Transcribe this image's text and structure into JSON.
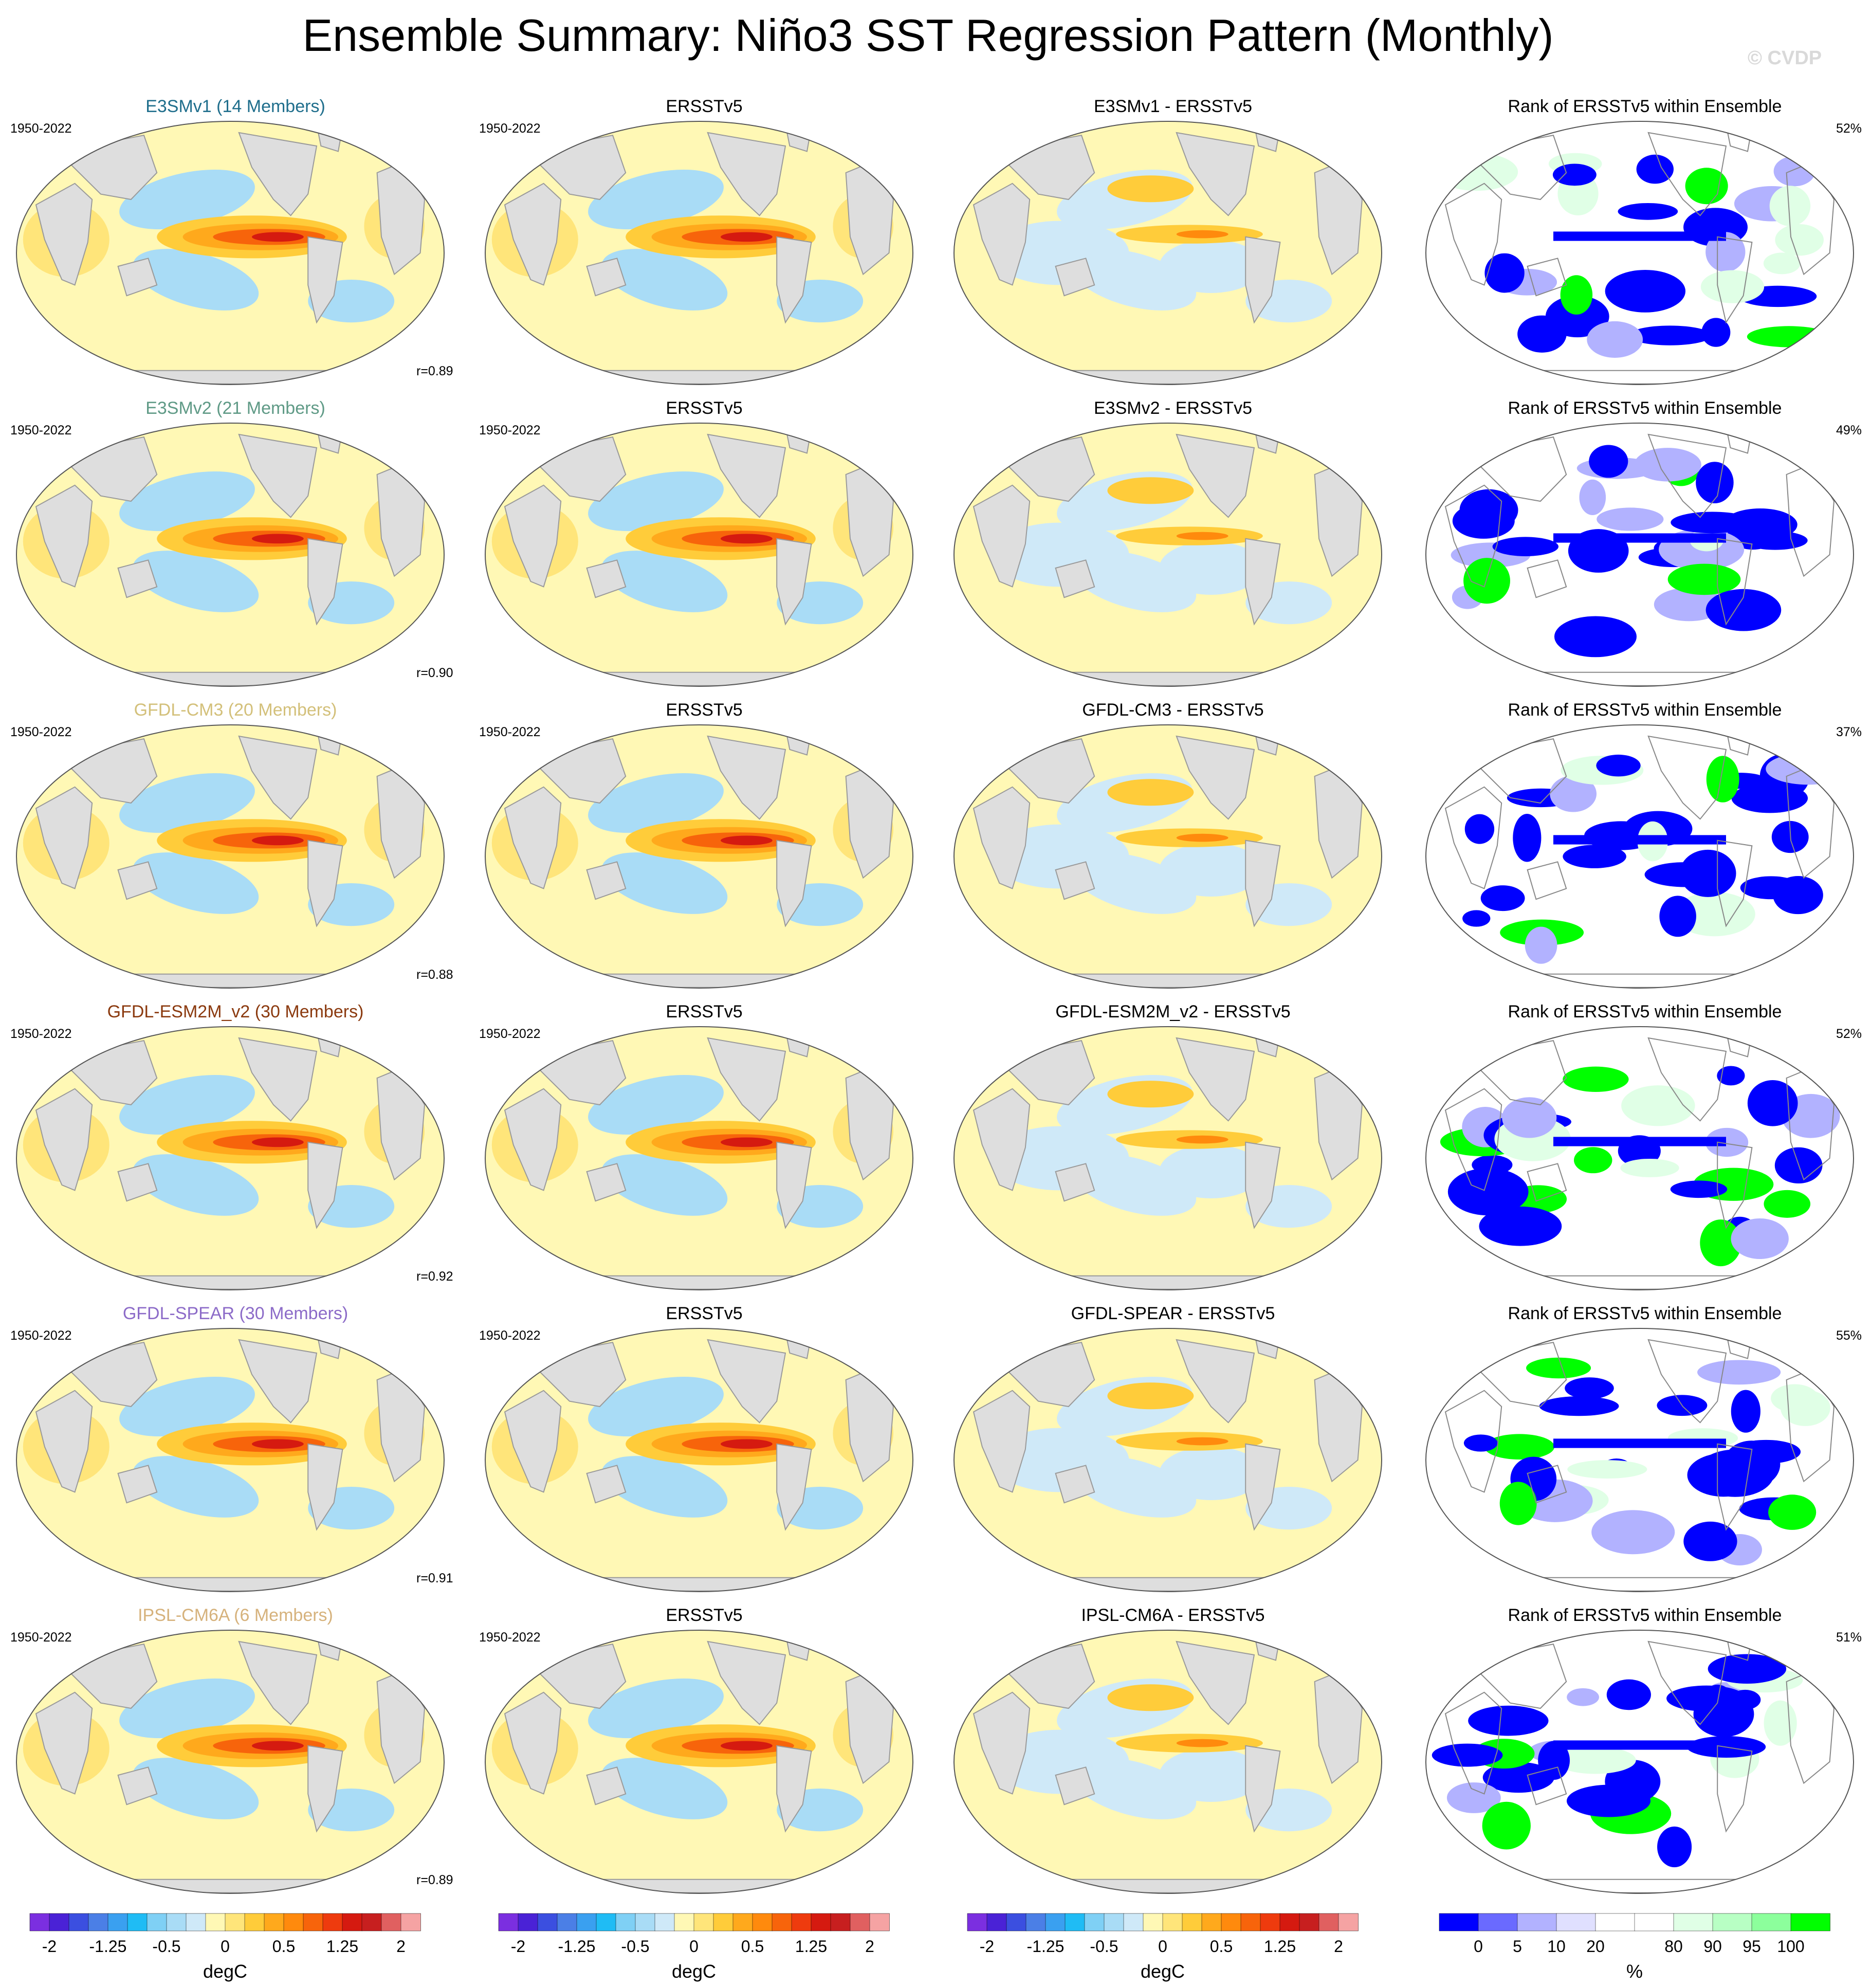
{
  "title": "Ensemble Summary: Niño3 SST Regression Pattern (Monthly)",
  "watermark": "© CVDP",
  "chart_data": {
    "type": "heatmap",
    "grid": {
      "columns": 4,
      "rows": 6
    },
    "column_titles": [
      "",
      "ERSSTv5",
      "- ERSSTv5",
      "Rank of ERSSTv5 within Ensemble"
    ],
    "rows": [
      {
        "model": "E3SMv1 (14 Members)",
        "model_color": "#1f6e8c",
        "period": "1950-2022",
        "obs_period": "1950-2022",
        "diff_title": "E3SMv1 - ERSSTv5",
        "rank_title": "Rank of ERSSTv5 within Ensemble",
        "r": "r=0.89",
        "rank_pct": "52%",
        "obs_title": "ERSSTv5"
      },
      {
        "model": "E3SMv2 (21 Members)",
        "model_color": "#5f9a86",
        "period": "1950-2022",
        "obs_period": "1950-2022",
        "diff_title": "E3SMv2 - ERSSTv5",
        "rank_title": "Rank of ERSSTv5 within Ensemble",
        "r": "r=0.90",
        "rank_pct": "49%",
        "obs_title": "ERSSTv5"
      },
      {
        "model": "GFDL-CM3 (20 Members)",
        "model_color": "#d3c07a",
        "period": "1950-2022",
        "obs_period": "1950-2022",
        "diff_title": "GFDL-CM3 - ERSSTv5",
        "rank_title": "Rank of ERSSTv5 within Ensemble",
        "r": "r=0.88",
        "rank_pct": "37%",
        "obs_title": "ERSSTv5"
      },
      {
        "model": "GFDL-ESM2M_v2 (30 Members)",
        "model_color": "#8b3a0f",
        "period": "1950-2022",
        "obs_period": "1950-2022",
        "diff_title": "GFDL-ESM2M_v2 - ERSSTv5",
        "rank_title": "Rank of ERSSTv5 within Ensemble",
        "r": "r=0.92",
        "rank_pct": "52%",
        "obs_title": "ERSSTv5"
      },
      {
        "model": "GFDL-SPEAR (30 Members)",
        "model_color": "#8c6bc8",
        "period": "1950-2022",
        "obs_period": "1950-2022",
        "diff_title": "GFDL-SPEAR - ERSSTv5",
        "rank_title": "Rank of ERSSTv5 within Ensemble",
        "r": "r=0.91",
        "rank_pct": "55%",
        "obs_title": "ERSSTv5"
      },
      {
        "model": "IPSL-CM6A (6 Members)",
        "model_color": "#d6b27c",
        "period": "1950-2022",
        "obs_period": "1950-2022",
        "diff_title": "IPSL-CM6A - ERSSTv5",
        "rank_title": "Rank of ERSSTv5 within Ensemble",
        "r": "r=0.89",
        "rank_pct": "51%",
        "obs_title": "ERSSTv5"
      }
    ],
    "sst_colorbar": {
      "unit": "degC",
      "tick_labels": [
        "-2",
        "-1.25",
        "-0.5",
        "0",
        "0.5",
        "1.25",
        "2"
      ],
      "colors": [
        "#7b2fe0",
        "#4a22d6",
        "#3b4fe0",
        "#4b7fe6",
        "#3aa0f0",
        "#1fbcf5",
        "#7fd0f5",
        "#a9dcf6",
        "#cfe9f8",
        "#fff8b5",
        "#ffe57a",
        "#ffcc3a",
        "#ffa91c",
        "#ff8a0d",
        "#f7640b",
        "#ee3b0e",
        "#d51a10",
        "#c71f1f",
        "#e06060",
        "#f5a3a3"
      ]
    },
    "rank_colorbar": {
      "unit": "%",
      "tick_labels": [
        "0",
        "5",
        "10",
        "20",
        "80",
        "90",
        "95",
        "100"
      ],
      "colors": [
        "#0000ff",
        "#6a6aff",
        "#b2b2ff",
        "#e0e0ff",
        "#ffffff",
        "#ffffff",
        "#e0ffe6",
        "#b8ffc4",
        "#8cff9c",
        "#00ff00"
      ]
    }
  }
}
